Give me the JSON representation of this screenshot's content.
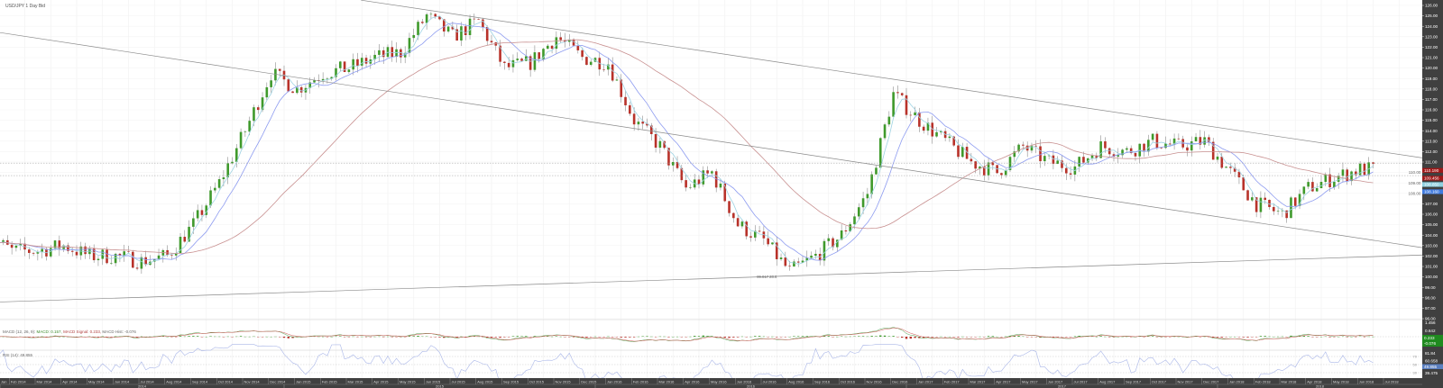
{
  "header": {
    "title": "USD/JPY  1 Day Bid"
  },
  "colors": {
    "up": "#3f9a2c",
    "down": "#b8322a",
    "sma_fast": "#9fd3e3",
    "sma_mid": "#8e9cf0",
    "sma_slow": "#c89090",
    "trendline": "#8a8a8a",
    "axis_bg": "#404040",
    "macd": "#4aa04a",
    "signal": "#d05050",
    "rsi": "#a9b6e8"
  },
  "chart_data": {
    "type": "candlestick",
    "title": "USD/JPY  1 Day Bid",
    "ylim": [
      96,
      126.5
    ],
    "y_ticks": [
      "96.00",
      "97.00",
      "98.00",
      "99.00",
      "100.00",
      "101.00",
      "102.00",
      "103.00",
      "104.00",
      "105.00",
      "106.00",
      "107.00",
      "108.00",
      "109.00",
      "110.00",
      "111.00",
      "112.00",
      "113.00",
      "114.00",
      "115.00",
      "116.00",
      "117.00",
      "118.00",
      "119.00",
      "120.00",
      "121.00",
      "122.00",
      "123.00",
      "124.00",
      "125.00",
      "126.00"
    ],
    "start_month": "2014-01",
    "monthly_close": [
      104,
      102.5,
      102.5,
      103,
      102,
      102,
      101.5,
      102,
      105,
      109,
      114,
      119.5,
      118,
      119.5,
      120,
      121,
      121.5,
      125,
      123,
      124.5,
      120,
      120.5,
      123,
      121,
      120.5,
      115,
      112.5,
      108.5,
      110,
      105,
      103.5,
      100.5,
      102,
      104,
      108,
      117.5,
      115,
      113,
      111,
      110,
      112.5,
      111,
      110.5,
      112.5,
      112,
      113,
      112.5,
      113,
      110,
      107,
      106,
      108.5,
      109.5,
      110.3
    ],
    "trendlines": [
      {
        "from": [
          "2015-03-30",
          126.5
        ],
        "to": [
          "2018-08-28",
          111.4
        ]
      },
      {
        "from": [
          "2014-02-02",
          123.4
        ],
        "to": [
          "2018-08-28",
          102.8
        ]
      },
      {
        "from": [
          "2014-02-02",
          97.6
        ],
        "to": [
          "2018-08-28",
          102.1
        ]
      }
    ],
    "horizontal_lines": [
      110.9,
      109.7
    ],
    "annotation": {
      "text": "99.017 28.6",
      "price": 99.9,
      "date": "2016-07-08"
    },
    "price_labels": [
      {
        "value": "110.190",
        "price": 110.2,
        "color": "#a01818"
      },
      {
        "value": "109.456",
        "price": 109.45,
        "color": "#a01818"
      },
      {
        "value": "108.850",
        "price": 108.85,
        "color": "#8fd0e0"
      },
      {
        "value": "108.160",
        "price": 108.16,
        "color": "#3f7be0"
      }
    ],
    "x_month_labels": [
      "Jan",
      "Feb 2014",
      "Mar 2014",
      "Apr 2014",
      "May 2014",
      "Jun 2014",
      "Jul 2014",
      "Aug 2014",
      "Sep 2014",
      "Oct 2014",
      "Nov 2014",
      "Dec 2014",
      "Jan 2015",
      "Feb 2015",
      "Mar 2015",
      "Apr 2015",
      "May 2015",
      "Jun 2015",
      "Jul 2015",
      "Aug 2015",
      "Sep 2015",
      "Oct 2015",
      "Nov 2015",
      "Dec 2015",
      "Jan 2016",
      "Feb 2016",
      "Mar 2016",
      "Apr 2016",
      "May 2016",
      "Jun 2016",
      "Jul 2016",
      "Aug 2016",
      "Sep 2016",
      "Oct 2016",
      "Nov 2016",
      "Dec 2016",
      "Jan 2017",
      "Feb 2017",
      "Mar 2017",
      "Apr 2017",
      "May 2017",
      "Jun 2017",
      "Jul 2017",
      "Aug 2017",
      "Sep 2017",
      "Oct 2017",
      "Nov 2017",
      "Dec 2017",
      "Jan 2018",
      "Feb 2018",
      "Mar 2018",
      "Apr 2018",
      "May 2018",
      "Jun 2018",
      "Jul 2018"
    ],
    "x_year_labels": [
      "2014",
      "2015",
      "2016",
      "2017",
      "2018"
    ],
    "macd": {
      "label": "MACD (12, 26, 9):",
      "macd_text": "MACD: 0.157,",
      "signal_text": "MACD Signal: 0.233,",
      "hist_text": "MACD Hist: -0.076",
      "axis": [
        "1.456",
        "0.642"
      ],
      "current": [
        "0.233",
        "-0.076"
      ]
    },
    "rsi": {
      "label": "RSI (14): 49.855",
      "axis": [
        "81.84",
        "60.658",
        "39.475"
      ],
      "current": "49.855",
      "levels": [
        "70",
        "50",
        "30"
      ]
    }
  }
}
